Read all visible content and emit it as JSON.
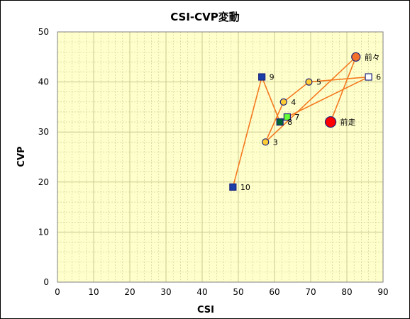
{
  "chart_data": {
    "type": "scatter",
    "title": "CSI-CVP変動",
    "xlabel": "CSI",
    "ylabel": "CVP",
    "xlim": [
      0,
      90
    ],
    "ylim": [
      0,
      50
    ],
    "xticks": [
      0,
      10,
      20,
      30,
      40,
      50,
      60,
      70,
      80,
      90
    ],
    "yticks": [
      0,
      10,
      20,
      30,
      40,
      50
    ],
    "grid": true,
    "legend": "none",
    "path_order": [
      "前走",
      "前々",
      "3",
      "4",
      "5",
      "6",
      "7",
      "8",
      "9",
      "10"
    ],
    "points": [
      {
        "label": "前走",
        "x": 75.5,
        "y": 32,
        "marker": "circle",
        "fill": "#ff0000",
        "stroke": "#1a237e",
        "size": "large"
      },
      {
        "label": "前々",
        "x": 82.5,
        "y": 45,
        "marker": "circle",
        "fill": "#f2702b",
        "stroke": "#1a237e",
        "size": "medium"
      },
      {
        "label": "3",
        "x": 57.5,
        "y": 28,
        "marker": "circle",
        "fill": "#ffcc33",
        "stroke": "#1a237e",
        "size": "small"
      },
      {
        "label": "4",
        "x": 62.5,
        "y": 36,
        "marker": "circle",
        "fill": "#ffcc33",
        "stroke": "#1a237e",
        "size": "small"
      },
      {
        "label": "5",
        "x": 69.5,
        "y": 40,
        "marker": "circle",
        "fill": "#ffcc33",
        "stroke": "#1a237e",
        "size": "small"
      },
      {
        "label": "6",
        "x": 86.0,
        "y": 41,
        "marker": "square",
        "fill": "#ffffff",
        "stroke": "#1a237e",
        "size": "small"
      },
      {
        "label": "7",
        "x": 63.5,
        "y": 33,
        "marker": "square",
        "fill": "#66ff33",
        "stroke": "#1a237e",
        "size": "small"
      },
      {
        "label": "8",
        "x": 61.5,
        "y": 32,
        "marker": "square",
        "fill": "#006633",
        "stroke": "#1a237e",
        "size": "small"
      },
      {
        "label": "9",
        "x": 56.5,
        "y": 41,
        "marker": "square",
        "fill": "#1a3fa8",
        "stroke": "#1a237e",
        "size": "small"
      },
      {
        "label": "10",
        "x": 48.5,
        "y": 19,
        "marker": "square",
        "fill": "#1a3fa8",
        "stroke": "#1a237e",
        "size": "small"
      }
    ],
    "colors": {
      "plot_background": "#ffffcc",
      "grid": "#c8c890",
      "line": "#f47a20",
      "axis": "#808080"
    }
  }
}
